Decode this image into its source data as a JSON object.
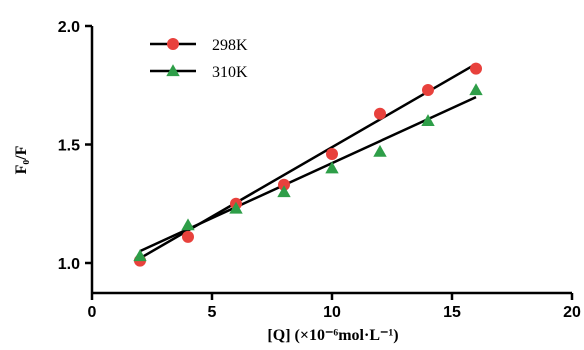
{
  "chart_data": {
    "type": "scatter",
    "xlabel": "[Q] (×10⁻⁶mol·L⁻¹)",
    "ylabel": "F₀/F",
    "xlim": [
      0,
      20
    ],
    "ylim": [
      0.9,
      2.0
    ],
    "xticks": [
      0,
      5,
      10,
      15,
      20
    ],
    "yticks": [
      1.0,
      1.5,
      2.0
    ],
    "xtick_labels": [
      "0",
      "5",
      "10",
      "15",
      "20"
    ],
    "ytick_labels": [
      "1.0",
      "1.5",
      "2.0"
    ],
    "grid": false,
    "legend_position": "top-left",
    "series": [
      {
        "name": "298K",
        "marker": "circle",
        "color": "#e8413c",
        "x": [
          2,
          4,
          6,
          8,
          10,
          12,
          14,
          16
        ],
        "y": [
          1.01,
          1.11,
          1.25,
          1.33,
          1.46,
          1.63,
          1.73,
          1.82
        ],
        "fit": {
          "x": [
            2,
            16
          ],
          "y": [
            1.02,
            1.84
          ]
        }
      },
      {
        "name": "310K",
        "marker": "triangle",
        "color": "#2e9e48",
        "x": [
          2,
          4,
          6,
          8,
          10,
          12,
          14,
          16
        ],
        "y": [
          1.03,
          1.16,
          1.23,
          1.3,
          1.4,
          1.47,
          1.6,
          1.73
        ],
        "fit": {
          "x": [
            2,
            16
          ],
          "y": [
            1.05,
            1.7
          ]
        }
      }
    ]
  }
}
